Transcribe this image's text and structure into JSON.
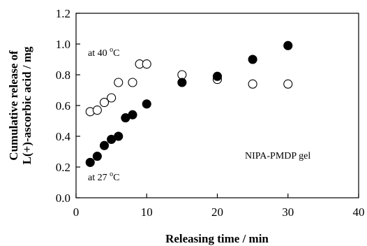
{
  "chart_data": {
    "type": "scatter",
    "title": "",
    "xlabel": "Releasing time / min",
    "ylabel_line1": "Cumulative release of",
    "ylabel_line2": "L(+)-ascorbic acid / mg",
    "xlim": [
      0,
      40
    ],
    "ylim": [
      0.0,
      1.2
    ],
    "x_ticks": [
      0,
      10,
      20,
      30,
      40
    ],
    "y_ticks": [
      0.0,
      0.2,
      0.4,
      0.6,
      0.8,
      1.0,
      1.2
    ],
    "x_tick_labels": [
      "0",
      "10",
      "20",
      "30",
      "40"
    ],
    "y_tick_labels": [
      "0.0",
      "0.2",
      "0.4",
      "0.6",
      "0.8",
      "1.0",
      "1.2"
    ],
    "grid": false,
    "series": [
      {
        "marker": "open-circle",
        "x": [
          2,
          3,
          4,
          5,
          6,
          8,
          9,
          10,
          15,
          20,
          25,
          30
        ],
        "y": [
          0.56,
          0.57,
          0.62,
          0.65,
          0.75,
          0.75,
          0.87,
          0.87,
          0.8,
          0.77,
          0.74,
          0.74
        ]
      },
      {
        "marker": "filled-circle",
        "x": [
          2,
          3,
          4,
          5,
          6,
          7,
          8,
          10,
          15,
          20,
          25,
          30
        ],
        "y": [
          0.23,
          0.27,
          0.34,
          0.38,
          0.4,
          0.52,
          0.54,
          0.61,
          0.75,
          0.79,
          0.9,
          0.99
        ]
      }
    ],
    "annotations": [
      {
        "main": "at 40 ",
        "sup": "o",
        "tail": "C"
      },
      {
        "main": "at 27 ",
        "sup": "o",
        "tail": "C"
      },
      {
        "main": "NIPA-PMDP gel",
        "sup": "",
        "tail": ""
      }
    ]
  }
}
